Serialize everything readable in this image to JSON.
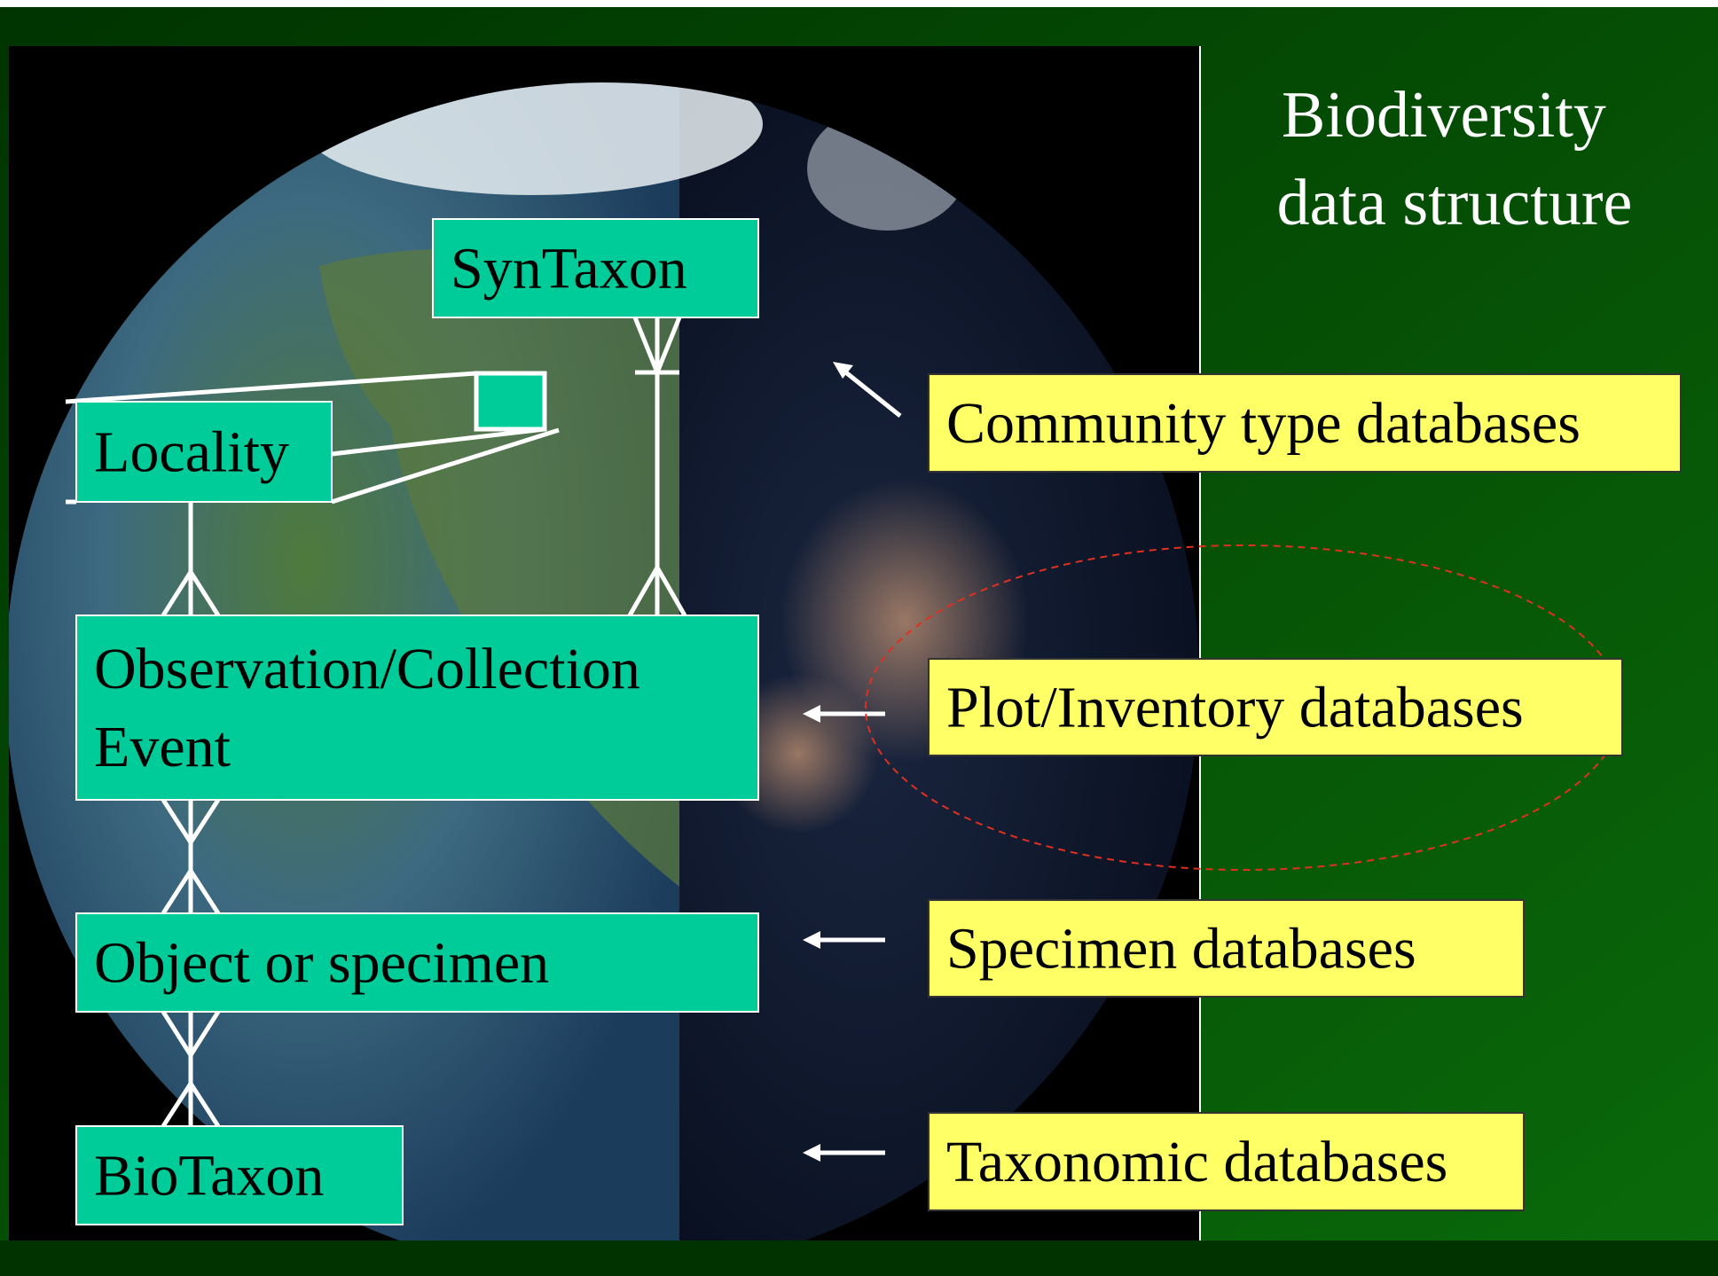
{
  "title": {
    "lines": [
      "Biodiversity",
      "data structure"
    ]
  },
  "entities": [
    {
      "label": [
        "SynTaxon"
      ]
    },
    {
      "label": [
        "Locality"
      ]
    },
    {
      "label": [
        "Observation/Collection",
        "Event"
      ]
    },
    {
      "label": [
        "Object or specimen"
      ]
    },
    {
      "label": [
        "BioTaxon"
      ]
    }
  ],
  "databases": [
    {
      "label": "Community type databases"
    },
    {
      "label": "Plot/Inventory databases"
    },
    {
      "label": "Specimen databases"
    },
    {
      "label": "Taxonomic databases"
    }
  ]
}
